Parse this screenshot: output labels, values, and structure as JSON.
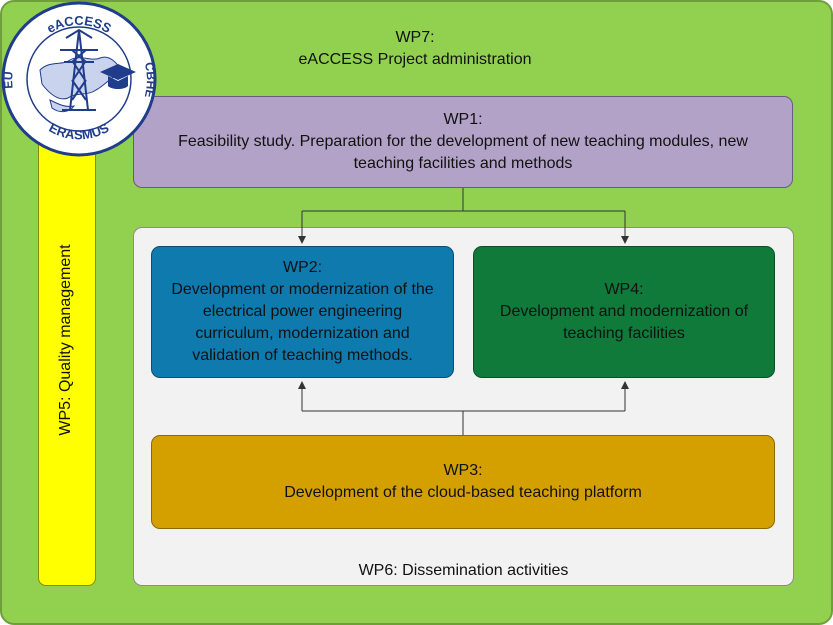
{
  "colors": {
    "wp7_bg": "#92d050",
    "wp5_bg": "#ffff00",
    "wp1_bg": "#b3a2c7",
    "wp6_bg": "#f2f2f2",
    "wp2_bg": "#0e7aad",
    "wp4_bg": "#0f7a3a",
    "wp3_bg": "#d4a000",
    "logo_blue": "#1f3d8a"
  },
  "logo": {
    "top_text": "eACCESS",
    "left_text": "EU",
    "right_text": "CBHE",
    "bottom_text": "ERASMUS",
    "icon": "transmission-tower-graduation-cap-map-logo"
  },
  "wp7": {
    "code": "WP7:",
    "title": "eACCESS Project administration"
  },
  "wp5": {
    "label": "WP5: Quality management"
  },
  "wp1": {
    "code": "WP1:",
    "line1": "Feasibility study. Preparation for the development of new teaching modules, new",
    "line2": "teaching facilities and methods"
  },
  "wp2": {
    "code": "WP2:",
    "line1": "Development or modernization of the",
    "line2": "electrical power engineering",
    "line3": "curriculum, modernization and",
    "line4": "validation of teaching methods."
  },
  "wp4": {
    "code": "WP4:",
    "line1": "Development and modernization of",
    "line2": "teaching facilities"
  },
  "wp3": {
    "code": "WP3:",
    "line1": "Development of the cloud-based teaching platform"
  },
  "wp6": {
    "label": "WP6: Dissemination activities"
  }
}
